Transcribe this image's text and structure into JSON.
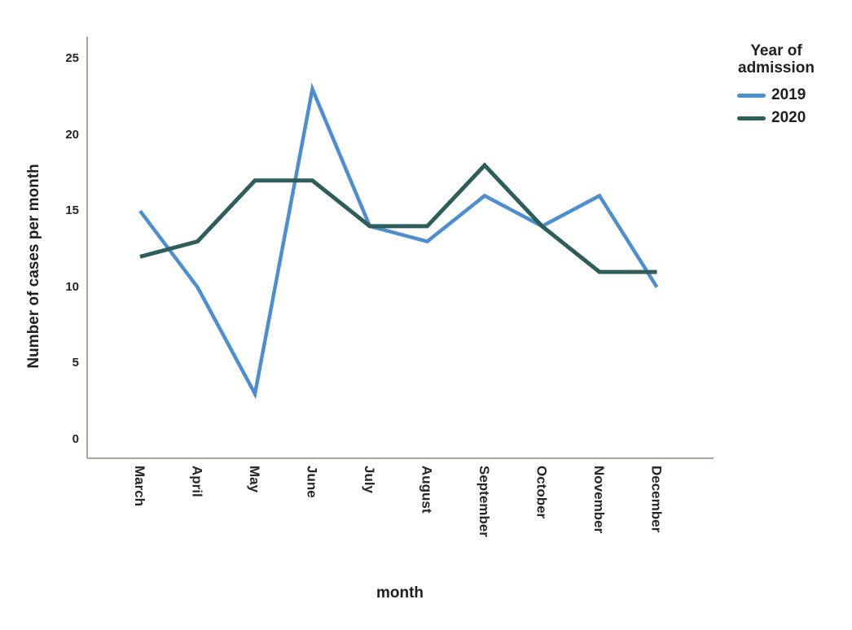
{
  "chart_data": {
    "type": "line",
    "title": "",
    "xlabel": "month",
    "ylabel": "Number of cases per month",
    "categories": [
      "March",
      "April",
      "May",
      "June",
      "July",
      "August",
      "September",
      "October",
      "November",
      "December"
    ],
    "series": [
      {
        "name": "2019",
        "color": "#4d8ed1",
        "values": [
          15,
          10,
          3,
          23,
          14,
          13,
          16,
          14,
          16,
          10
        ]
      },
      {
        "name": "2020",
        "color": "#2d5e59",
        "values": [
          12,
          13,
          17,
          17,
          14,
          14,
          18,
          14,
          11,
          11
        ]
      }
    ],
    "yticks": [
      0,
      5,
      10,
      15,
      20,
      25
    ],
    "ylim": [
      0,
      27
    ],
    "grid": false,
    "legend": {
      "title": "Year of admission",
      "position": "top-right",
      "entries": [
        "2019",
        "2020"
      ]
    },
    "axis_color": "#aaa49d",
    "text_color": "#262626"
  }
}
